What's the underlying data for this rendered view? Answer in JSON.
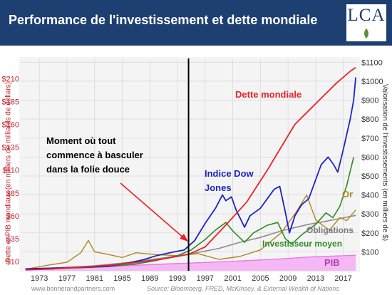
{
  "header": {
    "title": "Performance de l'investissement et dette mondiale",
    "logo_text": "LCA",
    "background": "#1d3f72"
  },
  "chart_data": {
    "type": "line",
    "left_axis": {
      "label": "Dette et PIB mondiaux (en milliers de milliards de dollars)",
      "ticks": [
        "$10",
        "$35",
        "$60",
        "$85",
        "$110",
        "$135",
        "$160",
        "$185",
        "$210"
      ],
      "tick_values": [
        10,
        35,
        60,
        85,
        110,
        135,
        160,
        185,
        210
      ],
      "range": [
        0,
        232
      ],
      "color": "#c0272d"
    },
    "right_axis": {
      "label": "Valorisation de l'investissements (en milliers de $)",
      "ticks": [
        "$100",
        "$200",
        "$300",
        "$400",
        "$500",
        "$600",
        "$700",
        "$800",
        "$900",
        "$1000",
        "$1100"
      ],
      "tick_values": [
        100,
        200,
        300,
        400,
        500,
        600,
        700,
        800,
        900,
        1000,
        1100
      ],
      "range": [
        0,
        1120
      ]
    },
    "x_axis": {
      "ticks": [
        "1973",
        "1977",
        "1981",
        "1985",
        "1989",
        "1993",
        "1997",
        "2001",
        "2005",
        "2009",
        "2013",
        "2017"
      ],
      "tick_values": [
        1973,
        1977,
        1981,
        1985,
        1989,
        1993,
        1997,
        2001,
        2005,
        2009,
        2013,
        2017
      ],
      "range": [
        1970.4,
        2019.2
      ]
    },
    "grid": true,
    "marker_year": 1994.6,
    "series": [
      {
        "name": "Dette mondiale",
        "axis": "left",
        "color": "#e8222a",
        "width": 1.8,
        "x": [
          1971,
          1975,
          1979,
          1983,
          1987,
          1991,
          1994.6,
          1997,
          2000,
          2003,
          2006,
          2008,
          2010,
          2012,
          2014,
          2016,
          2018,
          2018.8
        ],
        "y": [
          1,
          2,
          4,
          6,
          9,
          13,
          18,
          26,
          50,
          75,
          110,
          135,
          160,
          175,
          190,
          205,
          218,
          222
        ]
      },
      {
        "name": "Indice Dow Jones",
        "axis": "right",
        "color": "#1c24c4",
        "width": 1.8,
        "x": [
          1971,
          1975,
          1979,
          1983,
          1986,
          1988,
          1990,
          1992,
          1994,
          1995.5,
          1997,
          1998.5,
          1999.5,
          2000,
          2000.8,
          2001.5,
          2002.7,
          2003.5,
          2005,
          2007,
          2007.8,
          2008.6,
          2009.2,
          2010,
          2011,
          2012,
          2013,
          2013.8,
          2014.8,
          2015.6,
          2016.2,
          2017,
          2018,
          2018.5,
          2018.8
        ],
        "y": [
          10,
          14,
          18,
          24,
          42,
          58,
          80,
          96,
          110,
          160,
          250,
          330,
          400,
          370,
          390,
          320,
          230,
          290,
          330,
          430,
          445,
          310,
          200,
          290,
          350,
          380,
          480,
          560,
          600,
          560,
          520,
          640,
          800,
          900,
          1020
        ]
      },
      {
        "name": "Investisseur moyen",
        "axis": "right",
        "color": "#2e8b24",
        "width": 1.6,
        "x": [
          1971,
          1975,
          1979,
          1983,
          1987,
          1990,
          1993,
          1995,
          1997,
          1998.5,
          2000,
          2001,
          2002.7,
          2004,
          2006,
          2007.5,
          2008.6,
          2009.5,
          2011,
          2013,
          2014.5,
          2015.5,
          2016.5,
          2017.5,
          2018.5
        ],
        "y": [
          8,
          12,
          16,
          22,
          36,
          55,
          80,
          110,
          165,
          215,
          255,
          210,
          150,
          200,
          240,
          255,
          170,
          140,
          190,
          245,
          305,
          280,
          340,
          450,
          600
        ]
      },
      {
        "name": "Or",
        "axis": "right",
        "color": "#b38622",
        "width": 1.4,
        "x": [
          1971,
          1974,
          1977,
          1979,
          1980.1,
          1981,
          1982.5,
          1985,
          1987,
          1990,
          1993,
          1996,
          1999,
          2002,
          2005,
          2008,
          2010,
          2011.7,
          2013,
          2014,
          2015,
          2016.5,
          2017.5,
          2018.8
        ],
        "y": [
          8,
          28,
          45,
          95,
          160,
          100,
          90,
          70,
          95,
          85,
          80,
          90,
          60,
          75,
          110,
          200,
          300,
          400,
          270,
          240,
          215,
          280,
          265,
          320
        ]
      },
      {
        "name": "Obligations",
        "axis": "right",
        "color": "#8c8c8c",
        "width": 1.6,
        "x": [
          1971,
          1976,
          1981,
          1986,
          1991,
          1995,
          1999,
          2002,
          2005,
          2008,
          2010,
          2012,
          2014,
          2016,
          2018.8
        ],
        "y": [
          8,
          16,
          26,
          44,
          68,
          90,
          118,
          150,
          176,
          210,
          228,
          245,
          258,
          272,
          292
        ]
      },
      {
        "name": "PIB",
        "axis": "left",
        "color": "#e879e8",
        "fill": "#f5b8f5",
        "width": 1.4,
        "x": [
          1971,
          1980,
          1990,
          2000,
          2008,
          2012,
          2018.8
        ],
        "y": [
          2,
          4,
          7,
          10,
          13,
          15,
          17
        ]
      }
    ],
    "annotations": {
      "dette": "Dette mondiale",
      "dow": [
        "Indice Dow",
        "Jones"
      ],
      "or": "Or",
      "obligations": "Obligations",
      "investisseur": "Investisseur moyen",
      "pib": "PIB",
      "moment": [
        "Moment où tout",
        "commence à basculer",
        "dans la folie douce"
      ]
    }
  },
  "footer": {
    "website": "www.bonnerandpartners.com",
    "source": "Source: Bloomberg, FRED, McKinsey, & External Wealth of Nations"
  }
}
